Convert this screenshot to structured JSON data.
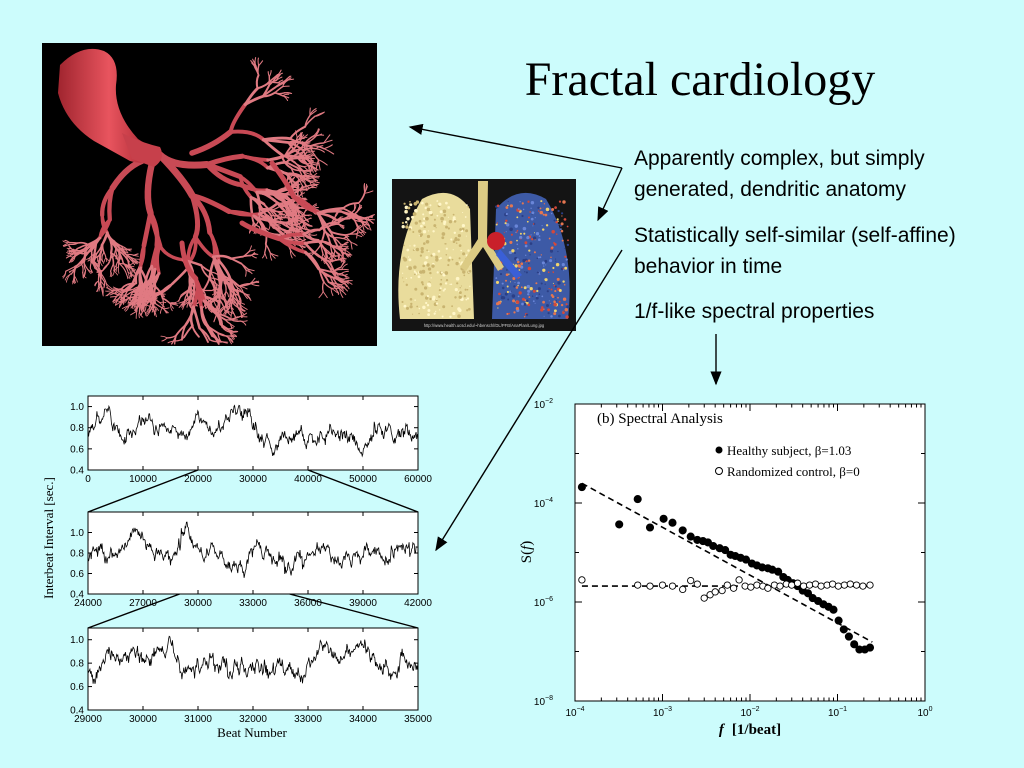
{
  "slide": {
    "title": "Fractal cardiology",
    "bullets": [
      "Apparently complex, but simply generated, dendritic anatomy",
      "Statistically self-similar (self-affine) behavior in time",
      "1/f-like spectral properties"
    ]
  },
  "images": {
    "heart": {
      "icon": "coronary-vasculature-cast-photo"
    },
    "lung": {
      "icon": "lung-bronchial-cast-photo",
      "caption": "http://www.health.ucsd.edu/~hbenschl/DL/PFB/AnaPlan/Lung.jpg"
    }
  },
  "chart_data": [
    {
      "type": "line",
      "ylabel": "Interbeat Interval [sec.]",
      "xlabel": "Beat Number",
      "panels": [
        {
          "xlim": [
            0,
            60000
          ],
          "xticks": [
            "0",
            "10000",
            "20000",
            "30000",
            "40000",
            "50000",
            "60000"
          ],
          "ylim": [
            0.4,
            1.1
          ],
          "yticks": [
            "0.4",
            "0.6",
            "0.8",
            "1.0"
          ],
          "zoom_range": [
            20000,
            40000
          ]
        },
        {
          "xlim": [
            24000,
            42000
          ],
          "xticks": [
            "24000",
            "27000",
            "30000",
            "33000",
            "36000",
            "39000",
            "42000"
          ],
          "ylim": [
            0.4,
            1.2
          ],
          "yticks": [
            "0.4",
            "0.6",
            "0.8",
            "1.0"
          ],
          "zoom_range": [
            29000,
            35000
          ]
        },
        {
          "xlim": [
            29000,
            35000
          ],
          "xticks": [
            "29000",
            "30000",
            "31000",
            "32000",
            "33000",
            "34000",
            "35000"
          ],
          "ylim": [
            0.4,
            1.1
          ],
          "yticks": [
            "0.4",
            "0.6",
            "0.8",
            "1.0"
          ]
        }
      ]
    },
    {
      "type": "scatter",
      "title": "(b) Spectral Analysis",
      "xlabel": "f  [1/beat]",
      "xlabel_parts": [
        "f",
        "[1/beat]"
      ],
      "ylabel": "S(f)",
      "ylabel_parts": [
        "S(",
        "f",
        ")"
      ],
      "xscale": "log",
      "yscale": "log",
      "xlim": [
        0.0001,
        1
      ],
      "ylim": [
        1e-08,
        0.01
      ],
      "xticks": [
        {
          "base": "10",
          "exp": "−4"
        },
        {
          "base": "10",
          "exp": "−3"
        },
        {
          "base": "10",
          "exp": "−2"
        },
        {
          "base": "10",
          "exp": "−1"
        },
        {
          "base": "10",
          "exp": "0"
        }
      ],
      "yticks": [
        {
          "base": "10",
          "exp": "−2"
        },
        {
          "base": "10",
          "exp": "−4"
        },
        {
          "base": "10",
          "exp": "−6"
        },
        {
          "base": "10",
          "exp": "−8"
        }
      ],
      "legend": "top-right",
      "series": [
        {
          "name": "Healthy subject, β=1.03",
          "marker": "filled-circle",
          "x": [
            0.00012,
            0.00032,
            0.00052,
            0.00072,
            0.00103,
            0.0013,
            0.0017,
            0.0021,
            0.0025,
            0.0029,
            0.0033,
            0.0038,
            0.0045,
            0.0052,
            0.006,
            0.0068,
            0.0078,
            0.009,
            0.0105,
            0.012,
            0.0138,
            0.016,
            0.018,
            0.021,
            0.024,
            0.027,
            0.031,
            0.035,
            0.04,
            0.046,
            0.052,
            0.06,
            0.069,
            0.079,
            0.09,
            0.103,
            0.118,
            0.135,
            0.155,
            0.178,
            0.205,
            0.235
          ],
          "y": [
            0.00021,
            3.7e-05,
            0.00012,
            3.2e-05,
            4.8e-05,
            4e-05,
            2.8e-05,
            2.1e-05,
            1.8e-05,
            1.7e-05,
            1.6e-05,
            1.35e-05,
            1.22e-05,
            1.12e-05,
            9e-06,
            8.5e-06,
            7.8e-06,
            7.2e-06,
            6e-06,
            5.5e-06,
            5e-06,
            4.8e-06,
            4.5e-06,
            4.1e-06,
            3.2e-06,
            2.8e-06,
            2.4e-06,
            2.1e-06,
            1.7e-06,
            1.5e-06,
            1.2e-06,
            1.05e-06,
            9e-07,
            8e-07,
            7e-07,
            4.2e-07,
            2.8e-07,
            2e-07,
            1.4e-07,
            1.1e-07,
            1.1e-07,
            1.2e-07
          ]
        },
        {
          "name": "Randomized control, β=0",
          "marker": "open-circle",
          "x": [
            0.00012,
            0.00052,
            0.00072,
            0.001,
            0.0013,
            0.0017,
            0.0021,
            0.0025,
            0.003,
            0.0035,
            0.004,
            0.0048,
            0.0055,
            0.0065,
            0.0075,
            0.0088,
            0.0102,
            0.012,
            0.014,
            0.016,
            0.019,
            0.022,
            0.026,
            0.03,
            0.035,
            0.041,
            0.048,
            0.056,
            0.065,
            0.076,
            0.088,
            0.102,
            0.12,
            0.14,
            0.165,
            0.195,
            0.235
          ],
          "y": [
            2.8e-06,
            2.2e-06,
            2.1e-06,
            2.2e-06,
            2.1e-06,
            1.8e-06,
            2.7e-06,
            2.3e-06,
            1.2e-06,
            1.4e-06,
            1.6e-06,
            1.7e-06,
            2.2e-06,
            1.9e-06,
            2.8e-06,
            2.1e-06,
            2e-06,
            2.2e-06,
            2.1e-06,
            1.9e-06,
            2.2e-06,
            2.1e-06,
            2.3e-06,
            2.2e-06,
            2.4e-06,
            2.1e-06,
            2.2e-06,
            2.3e-06,
            2.1e-06,
            2.2e-06,
            2.3e-06,
            2.1e-06,
            2.2e-06,
            2.3e-06,
            2.2e-06,
            2.1e-06,
            2.2e-06
          ]
        }
      ],
      "fit_lines": [
        {
          "style": "dashed",
          "x": [
            0.00012,
            0.25
          ],
          "y": [
            0.00025,
            1.55e-07
          ]
        },
        {
          "style": "dashed",
          "x": [
            0.00012,
            0.25
          ],
          "y": [
            2.1e-06,
            2.1e-06
          ]
        }
      ]
    }
  ]
}
